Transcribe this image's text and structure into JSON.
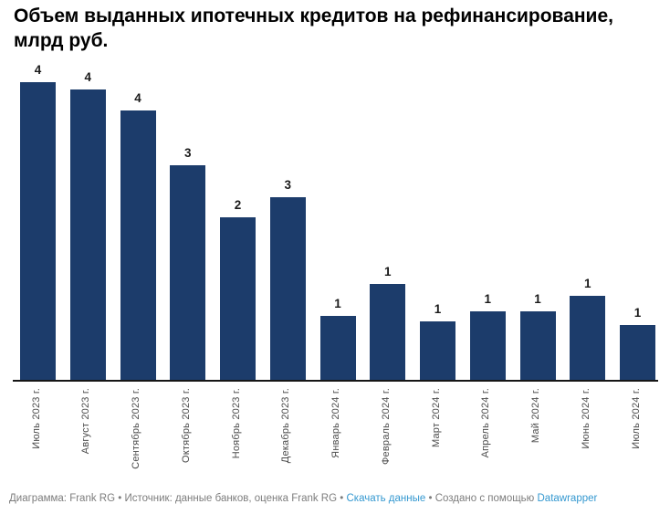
{
  "header": {
    "title_line1": "Объем выданных ипотечных кредитов на рефинансирование,",
    "title_line2": "млрд руб."
  },
  "chart_data": {
    "type": "bar",
    "title": "Объем выданных ипотечных кредитов на рефинансирование, млрд руб.",
    "xlabel": "",
    "ylabel": "млрд руб.",
    "categories": [
      "Июль 2023 г.",
      "Август 2023 г.",
      "Сентябрь 2023 г.",
      "Октябрь 2023 г.",
      "Ноябрь 2023 г.",
      "Декабрь 2023 г.",
      "Январь 2024 г.",
      "Февраль 2024 г.",
      "Март 2024 г.",
      "Апрель 2024 г.",
      "Май 2024 г.",
      "Июнь 2024 г.",
      "Июль 2024 г."
    ],
    "values": [
      4.3,
      4.2,
      3.9,
      3.1,
      2.35,
      2.65,
      0.93,
      1.4,
      0.86,
      1.0,
      1.0,
      1.22,
      0.8
    ],
    "value_labels": [
      "4",
      "4",
      "4",
      "3",
      "2",
      "3",
      "1",
      "1",
      "1",
      "1",
      "1",
      "1",
      "1"
    ],
    "ylim": [
      0,
      4.5
    ],
    "grid": false,
    "legend": "none",
    "x_tick_rotation": -90,
    "value_label_position": "above-bar",
    "bar_color": "#1c3c6b",
    "axis_line_color": "#161616",
    "tick_label_color": "#4d4d4d",
    "value_label_color": "#1a1a1a"
  },
  "footer": {
    "text_color": "#7d7d7d",
    "link_color": "#3498d0",
    "parts": [
      {
        "name": "chart-credit",
        "type": "text",
        "text": "Диаграмма: Frank RG"
      },
      {
        "name": "separator",
        "type": "separator",
        "text": " • "
      },
      {
        "name": "source-credit",
        "type": "text",
        "text": "Источник: данные банков, оценка Frank RG"
      },
      {
        "name": "separator",
        "type": "separator",
        "text": " • "
      },
      {
        "name": "download-data-link",
        "type": "link",
        "text": "Скачать данные"
      },
      {
        "name": "separator",
        "type": "separator",
        "text": " • "
      },
      {
        "name": "created-with-text",
        "type": "text",
        "text": "Создано с помощью "
      },
      {
        "name": "datawrapper-link",
        "type": "link",
        "text": "Datawrapper"
      }
    ]
  }
}
